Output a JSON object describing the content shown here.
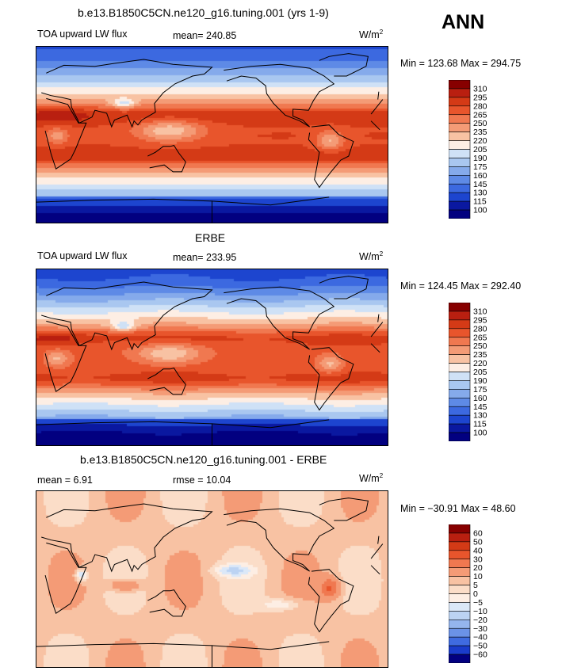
{
  "header": {
    "season": "ANN"
  },
  "panels": [
    {
      "title": "b.e13.B1850C5CN.ne120_g16.tuning.001 (yrs 1-9)",
      "left_label": "TOA upward LW flux",
      "center_label": "mean= 240.85",
      "units": "W/m",
      "units_sup": "2",
      "minmax": "Min = 123.68 Max = 294.75",
      "colorbar_levels": [
        "310",
        "295",
        "280",
        "265",
        "250",
        "235",
        "220",
        "205",
        "190",
        "175",
        "160",
        "145",
        "130",
        "115",
        "100"
      ]
    },
    {
      "title": "ERBE",
      "left_label": "TOA upward LW flux",
      "center_label": "mean= 233.95",
      "units": "W/m",
      "units_sup": "2",
      "minmax": "Min = 124.45 Max = 292.40",
      "colorbar_levels": [
        "310",
        "295",
        "280",
        "265",
        "250",
        "235",
        "220",
        "205",
        "190",
        "175",
        "160",
        "145",
        "130",
        "115",
        "100"
      ]
    },
    {
      "title": "b.e13.B1850C5CN.ne120_g16.tuning.001 - ERBE",
      "left_label": "mean =   6.91",
      "center_label": "rmse =   10.04",
      "units": "W/m",
      "units_sup": "2",
      "minmax": "Min = −30.91 Max =  48.60",
      "colorbar_levels": [
        "60",
        "50",
        "40",
        "30",
        "20",
        "10",
        "5",
        "0",
        "−5",
        "−10",
        "−20",
        "−30",
        "−40",
        "−50",
        "−60"
      ]
    }
  ],
  "colors": {
    "flux_scale": [
      "#870000",
      "#b91f10",
      "#d43a16",
      "#e8552c",
      "#f07850",
      "#f49b76",
      "#f8c2a3",
      "#fdeee4",
      "#cfe1f6",
      "#a9c7f0",
      "#85aaeb",
      "#5e8ae6",
      "#3c69e0",
      "#1d45cf",
      "#0a18a0",
      "#020080"
    ],
    "diff_scale": [
      "#870000",
      "#b91f10",
      "#d43a16",
      "#e8552c",
      "#f07850",
      "#f49b76",
      "#f8c2a3",
      "#fbddc8",
      "#fdeee4",
      "#dbe8f8",
      "#bcd3f3",
      "#95b5ee",
      "#6b92e7",
      "#3f6be0",
      "#1a3ccb",
      "#020080"
    ],
    "coastline": "#000000"
  },
  "chart_data": [
    {
      "type": "heatmap",
      "title": "b.e13.B1850C5CN.ne120_g16.tuning.001 (yrs 1-9)",
      "variable": "TOA upward LW flux",
      "units": "W/m2",
      "mean": 240.85,
      "min": 123.68,
      "max": 294.75,
      "contour_levels": [
        100,
        115,
        130,
        145,
        160,
        175,
        190,
        205,
        220,
        235,
        250,
        265,
        280,
        295,
        310
      ]
    },
    {
      "type": "heatmap",
      "title": "ERBE",
      "variable": "TOA upward LW flux",
      "units": "W/m2",
      "mean": 233.95,
      "min": 124.45,
      "max": 292.4,
      "contour_levels": [
        100,
        115,
        130,
        145,
        160,
        175,
        190,
        205,
        220,
        235,
        250,
        265,
        280,
        295,
        310
      ]
    },
    {
      "type": "heatmap",
      "title": "b.e13.B1850C5CN.ne120_g16.tuning.001 - ERBE",
      "units": "W/m2",
      "mean": 6.91,
      "rmse": 10.04,
      "min": -30.91,
      "max": 48.6,
      "contour_levels": [
        -60,
        -50,
        -40,
        -30,
        -20,
        -10,
        -5,
        0,
        5,
        10,
        20,
        30,
        40,
        50,
        60
      ]
    }
  ]
}
